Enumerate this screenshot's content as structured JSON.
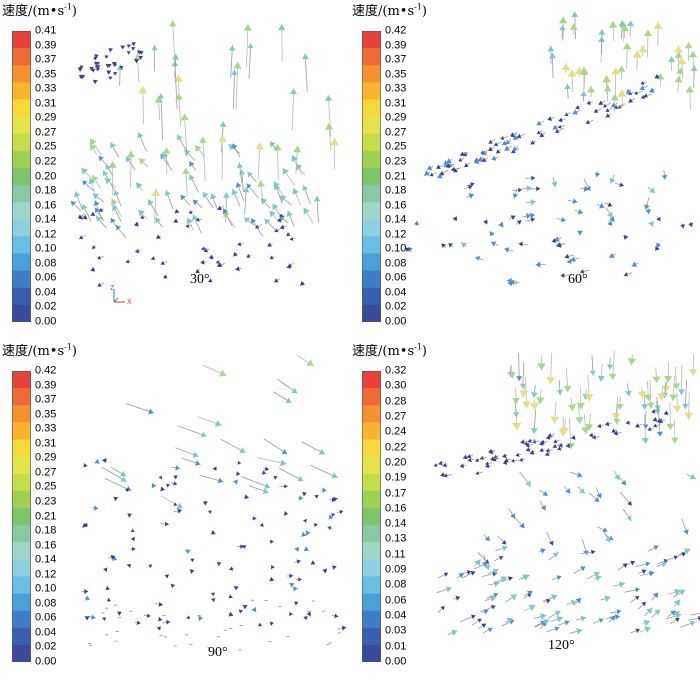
{
  "figure": {
    "panels": [
      {
        "id": "p30",
        "title": "速度/(m•s",
        "title_exp": "-1",
        "title_close": ")",
        "angle": "30°",
        "ticks": [
          "0.41",
          "0.39",
          "0.37",
          "0.35",
          "0.33",
          "0.31",
          "0.29",
          "0.27",
          "0.25",
          "0.22",
          "0.20",
          "0.18",
          "0.16",
          "0.14",
          "0.12",
          "0.10",
          "0.08",
          "0.06",
          "0.04",
          "0.02",
          "0.00"
        ],
        "axis_labels": {
          "z": "Z",
          "x": "X"
        }
      },
      {
        "id": "p60",
        "title": "速度/(m•s",
        "title_exp": "-1",
        "title_close": ")",
        "angle": "60°",
        "ticks": [
          "0.42",
          "0.39",
          "0.37",
          "0.35",
          "0.33",
          "0.31",
          "0.29",
          "0.27",
          "0.25",
          "0.23",
          "0.21",
          "0.18",
          "0.16",
          "0.14",
          "0.12",
          "0.10",
          "0.08",
          "0.06",
          "0.04",
          "0.02",
          "0.00"
        ]
      },
      {
        "id": "p90",
        "title": "速度/(m•s",
        "title_exp": "-1",
        "title_close": ")",
        "angle": "90°",
        "ticks": [
          "0.42",
          "0.39",
          "0.37",
          "0.35",
          "0.33",
          "0.31",
          "0.29",
          "0.27",
          "0.25",
          "0.23",
          "0.21",
          "0.18",
          "0.16",
          "0.14",
          "0.12",
          "0.10",
          "0.08",
          "0.06",
          "0.04",
          "0.02",
          "0.00"
        ]
      },
      {
        "id": "p120",
        "title": "速度/(m•s",
        "title_exp": "-1",
        "title_close": ")",
        "angle": "120°",
        "ticks": [
          "0.32",
          "0.30",
          "0.28",
          "0.27",
          "0.24",
          "0.22",
          "0.20",
          "0.19",
          "0.17",
          "0.16",
          "0.14",
          "0.13",
          "0.11",
          "0.09",
          "0.08",
          "0.06",
          "0.04",
          "0.03",
          "0.01",
          "0.00"
        ]
      }
    ],
    "colorbar_colors": [
      "#e8403a",
      "#ee6a36",
      "#f3922f",
      "#f6b52d",
      "#f5d93a",
      "#e4e34a",
      "#c5dc4b",
      "#9fd152",
      "#7ec56a",
      "#86c9a3",
      "#9fd6c9",
      "#8ed0e0",
      "#6cbde4",
      "#4d9fd8",
      "#3f7ec7",
      "#3a5fb0",
      "#3b4a99"
    ],
    "colors": {
      "low": "#3b3f8f",
      "mid_low": "#4d9fd8",
      "mid": "#8ed0c8",
      "mid_high": "#c5dc4b",
      "high": "#e9dc8a",
      "shaft": "#a9a9a9"
    }
  }
}
